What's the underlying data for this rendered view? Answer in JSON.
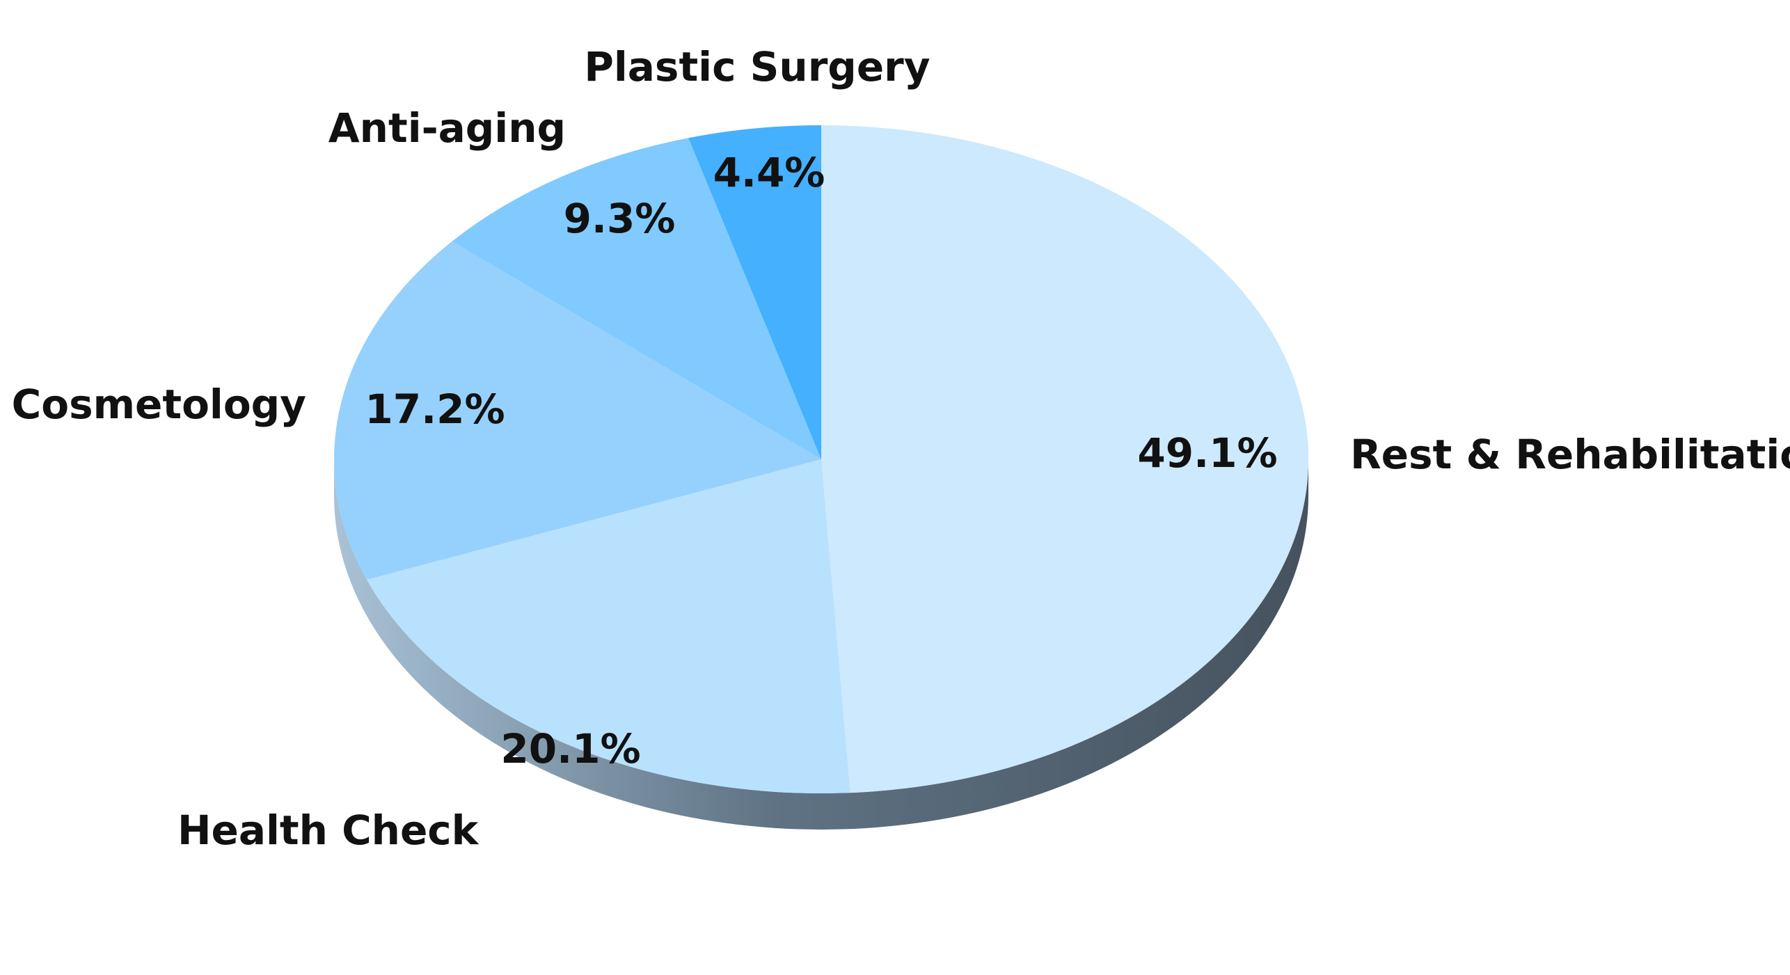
{
  "chart_data": {
    "type": "pie",
    "title": "",
    "start": "12 o'clock",
    "direction": "clockwise",
    "style": "3d-tilted",
    "slices": [
      {
        "name": "Rest & Rehabilitation",
        "value": 49.1,
        "label": "49.1%",
        "color": "#cce9fd"
      },
      {
        "name": "Health Check",
        "value": 20.1,
        "label": "20.1%",
        "color": "#b8e1fd"
      },
      {
        "name": "Cosmetology",
        "value": 17.2,
        "label": "17.2%",
        "color": "#95d1fc"
      },
      {
        "name": "Anti-aging",
        "value": 9.3,
        "label": "9.3%",
        "color": "#80caff"
      },
      {
        "name": "Plastic Surgery",
        "value": 4.4,
        "label": "4.4%",
        "color": "#45b0fd"
      }
    ],
    "side_colors": {
      "light": "#8ea9c1",
      "dark": "#4c5b68"
    }
  }
}
